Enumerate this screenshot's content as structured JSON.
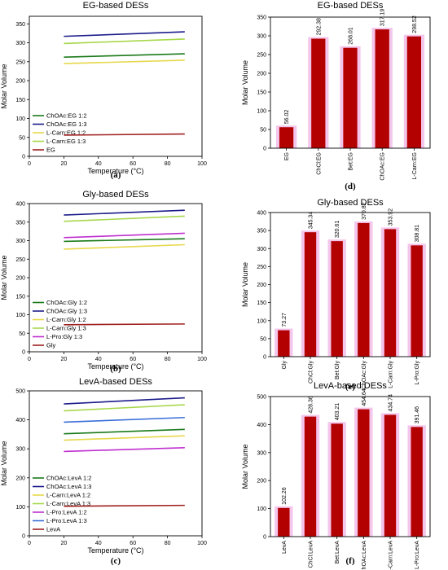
{
  "chart_data": [
    {
      "id": "a",
      "panel_label": "(a)",
      "type": "line",
      "title": "EG-based DESs",
      "xlabel": "Temperature (°C)",
      "ylabel": "Molar Volume",
      "xlim": [
        0,
        100
      ],
      "ylim": [
        0,
        370
      ],
      "xticks": [
        0,
        20,
        40,
        60,
        80,
        100
      ],
      "yticks": [
        0,
        50,
        100,
        150,
        200,
        250,
        300,
        350
      ],
      "legend_position": "lower-left",
      "series": [
        {
          "name": "ChOAc:EG 1:2",
          "color": "#1a7a1a",
          "x": [
            20,
            90
          ],
          "y": [
            262,
            271
          ]
        },
        {
          "name": "ChOAc:EG 1:3",
          "color": "#1c1c8c",
          "x": [
            20,
            90
          ],
          "y": [
            317,
            329
          ]
        },
        {
          "name": "L-Carn:EG 1:2",
          "color": "#e6d84a",
          "x": [
            20,
            90
          ],
          "y": [
            245,
            254
          ]
        },
        {
          "name": "L-Carn:EG 1:3",
          "color": "#a6d84a",
          "x": [
            20,
            90
          ],
          "y": [
            298,
            310
          ]
        },
        {
          "name": "EG",
          "color": "#a02020",
          "x": [
            20,
            90
          ],
          "y": [
            56,
            59
          ]
        }
      ]
    },
    {
      "id": "b",
      "panel_label": "(b)",
      "type": "line",
      "title": "Gly-based DESs",
      "xlabel": "Temperature (°C)",
      "ylabel": "Molar Volume",
      "xlim": [
        0,
        100
      ],
      "ylim": [
        0,
        400
      ],
      "xticks": [
        0,
        20,
        40,
        60,
        80,
        100
      ],
      "yticks": [
        0,
        50,
        100,
        150,
        200,
        250,
        300,
        350,
        400
      ],
      "legend_position": "lower-left",
      "series": [
        {
          "name": "ChOAc:Gly 1:2",
          "color": "#1a7a1a",
          "x": [
            20,
            90
          ],
          "y": [
            298,
            305
          ]
        },
        {
          "name": "ChOAc:Gly 1:3",
          "color": "#1c1c8c",
          "x": [
            20,
            90
          ],
          "y": [
            369,
            382
          ]
        },
        {
          "name": "L-Carn:Gly 1:2",
          "color": "#e6d84a",
          "x": [
            20,
            90
          ],
          "y": [
            277,
            289
          ]
        },
        {
          "name": "L-Carn:Gly 1:3",
          "color": "#a6d84a",
          "x": [
            20,
            90
          ],
          "y": [
            352,
            366
          ]
        },
        {
          "name": "L-Pro:Gly 1:3",
          "color": "#c02fd0",
          "x": [
            20,
            90
          ],
          "y": [
            308,
            320
          ]
        },
        {
          "name": "Gly",
          "color": "#a02020",
          "x": [
            20,
            90
          ],
          "y": [
            73,
            75
          ]
        }
      ]
    },
    {
      "id": "c",
      "panel_label": "(c)",
      "type": "line",
      "title": "LevA-based DESs",
      "xlabel": "Temperature (°C)",
      "ylabel": "Molar Volume",
      "xlim": [
        0,
        100
      ],
      "ylim": [
        0,
        500
      ],
      "xticks": [
        0,
        20,
        40,
        60,
        80,
        100
      ],
      "yticks": [
        0,
        100,
        200,
        300,
        400,
        500
      ],
      "legend_position": "lower-left",
      "series": [
        {
          "name": "ChOAc:LevA 1:2",
          "color": "#1a7a1a",
          "x": [
            20,
            90
          ],
          "y": [
            352,
            367
          ]
        },
        {
          "name": "ChOAc:LevA 1:3",
          "color": "#1c1c8c",
          "x": [
            20,
            90
          ],
          "y": [
            455,
            476
          ]
        },
        {
          "name": "L-Carn:LevA 1:2",
          "color": "#e6d84a",
          "x": [
            20,
            90
          ],
          "y": [
            330,
            345
          ]
        },
        {
          "name": "L-Carn:LevA 1:3",
          "color": "#a6d84a",
          "x": [
            20,
            90
          ],
          "y": [
            431,
            452
          ]
        },
        {
          "name": "L-Pro:LevA 1:2",
          "color": "#c02fd0",
          "x": [
            20,
            90
          ],
          "y": [
            291,
            304
          ]
        },
        {
          "name": "L-Pro:LevA 1:3",
          "color": "#3a6fd8",
          "x": [
            20,
            90
          ],
          "y": [
            392,
            408
          ]
        },
        {
          "name": "LevA",
          "color": "#a02020",
          "x": [
            20,
            90
          ],
          "y": [
            102,
            105
          ]
        }
      ]
    },
    {
      "id": "d",
      "panel_label": "(d)",
      "type": "bar",
      "title": "EG-based DESs",
      "ylabel": "Molar Volume",
      "ylim": [
        0,
        350
      ],
      "yticks": [
        0,
        50,
        100,
        150,
        200,
        250,
        300,
        350
      ],
      "bar_color": "#b30000",
      "halo_color": "#f4c6ec",
      "categories": [
        "EG",
        "ChCl:EG",
        "Bet:EG",
        "ChOAc:EG",
        "L-Carn:EG"
      ],
      "values": [
        56.02,
        292.38,
        268.01,
        317.19,
        298.52
      ],
      "value_labels": [
        "56.02",
        "292.38",
        "268.01",
        "317.19",
        "298.52"
      ]
    },
    {
      "id": "e",
      "panel_label": "(e)",
      "type": "bar",
      "title": "Gly-based DESs",
      "ylabel": "Molar Volume",
      "ylim": [
        0,
        400
      ],
      "yticks": [
        0,
        50,
        100,
        150,
        200,
        250,
        300,
        350,
        400
      ],
      "bar_color": "#b30000",
      "halo_color": "#f4c6ec",
      "categories": [
        "Gly",
        "ChCl:Gly",
        "Bet:Gly",
        "ChOAc:Gly",
        "L-Carn:Gly",
        "L-Pro:Gly"
      ],
      "values": [
        73.27,
        345.34,
        320.61,
        370.82,
        353.92,
        308.81
      ],
      "value_labels": [
        "73.27",
        "345.34",
        "320.61",
        "370.82",
        "353.92",
        "308.81"
      ]
    },
    {
      "id": "f",
      "panel_label": "(f)",
      "type": "bar",
      "title": "LevA-based DESs",
      "ylabel": "Molar Volume",
      "ylim": [
        0,
        500
      ],
      "yticks": [
        0,
        100,
        200,
        300,
        400,
        500
      ],
      "bar_color": "#b30000",
      "halo_color": "#f4c6ec",
      "categories": [
        "LevA",
        "ChCl:LevA",
        "Bet:LevA",
        "ChOAc:LevA",
        "L-Carn:LevA",
        "L-Pro:LevA"
      ],
      "values": [
        102.26,
        428.36,
        403.21,
        454.64,
        434.74,
        391.46
      ],
      "value_labels": [
        "102.26",
        "428.36",
        "403.21",
        "454.64",
        "434.74",
        "391.46"
      ]
    }
  ]
}
